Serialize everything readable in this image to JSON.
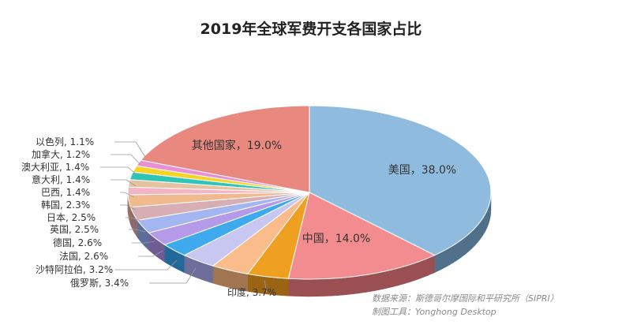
{
  "chart_data": {
    "type": "pie",
    "title": "2019年全球军费开支各国家占比",
    "slices": [
      {
        "label": "美国",
        "value": 38.0,
        "display": "美国，38.0%",
        "color": "#8fbcde",
        "side": "#4f6f8a"
      },
      {
        "label": "中国",
        "value": 14.0,
        "display": "中国，14.0%",
        "color": "#f28c8f",
        "side": "#9a4f52"
      },
      {
        "label": "印度",
        "value": 3.7,
        "display": "印度, 3.7%",
        "color": "#f0a020",
        "side": "#9a6412"
      },
      {
        "label": "俄罗斯",
        "value": 3.4,
        "display": "俄罗斯, 3.4%",
        "color": "#f9bc8a",
        "side": "#a07550"
      },
      {
        "label": "沙特阿拉伯",
        "value": 3.2,
        "display": "沙特阿拉伯, 3.2%",
        "color": "#c7c7f2",
        "side": "#6e6e9a"
      },
      {
        "label": "法国",
        "value": 2.6,
        "display": "法国, 2.6%",
        "color": "#3fa9ee",
        "side": "#22699a"
      },
      {
        "label": "德国",
        "value": 2.6,
        "display": "德国, 2.6%",
        "color": "#b49ae8",
        "side": "#6f5c95"
      },
      {
        "label": "英国",
        "value": 2.5,
        "display": "英国, 2.5%",
        "color": "#a3b6f2",
        "side": "#5d6d9a"
      },
      {
        "label": "日本",
        "value": 2.5,
        "display": "日本, 2.5%",
        "color": "#d7aeb4",
        "side": "#8a6a70"
      },
      {
        "label": "韩国",
        "value": 2.3,
        "display": "韩国, 2.3%",
        "color": "#f0ba8e",
        "side": "#9a7450"
      },
      {
        "label": "巴西",
        "value": 1.4,
        "display": "巴西, 1.4%",
        "color": "#f3b4c6",
        "side": "#9a6a78"
      },
      {
        "label": "意大利",
        "value": 1.4,
        "display": "意大利, 1.4%",
        "color": "#e6c2a0",
        "side": "#947a60"
      },
      {
        "label": "澳大利亚",
        "value": 1.4,
        "display": "澳大利亚, 1.4%",
        "color": "#2ec4b6",
        "side": "#1a7a70"
      },
      {
        "label": "加拿大",
        "value": 1.2,
        "display": "加拿大, 1.2%",
        "color": "#f5d327",
        "side": "#9a8418"
      },
      {
        "label": "以色列",
        "value": 1.1,
        "display": "以色列, 1.1%",
        "color": "#e88fd5",
        "side": "#925a86"
      },
      {
        "label": "其他国家",
        "value": 19.0,
        "display": "其他国家，19.0%",
        "color": "#e8887f",
        "side": "#94564f"
      }
    ]
  },
  "source": "数据来源：斯德哥尔摩国际和平研究所（SIPRI）",
  "tool": "制图工具：Yonghong Desktop"
}
